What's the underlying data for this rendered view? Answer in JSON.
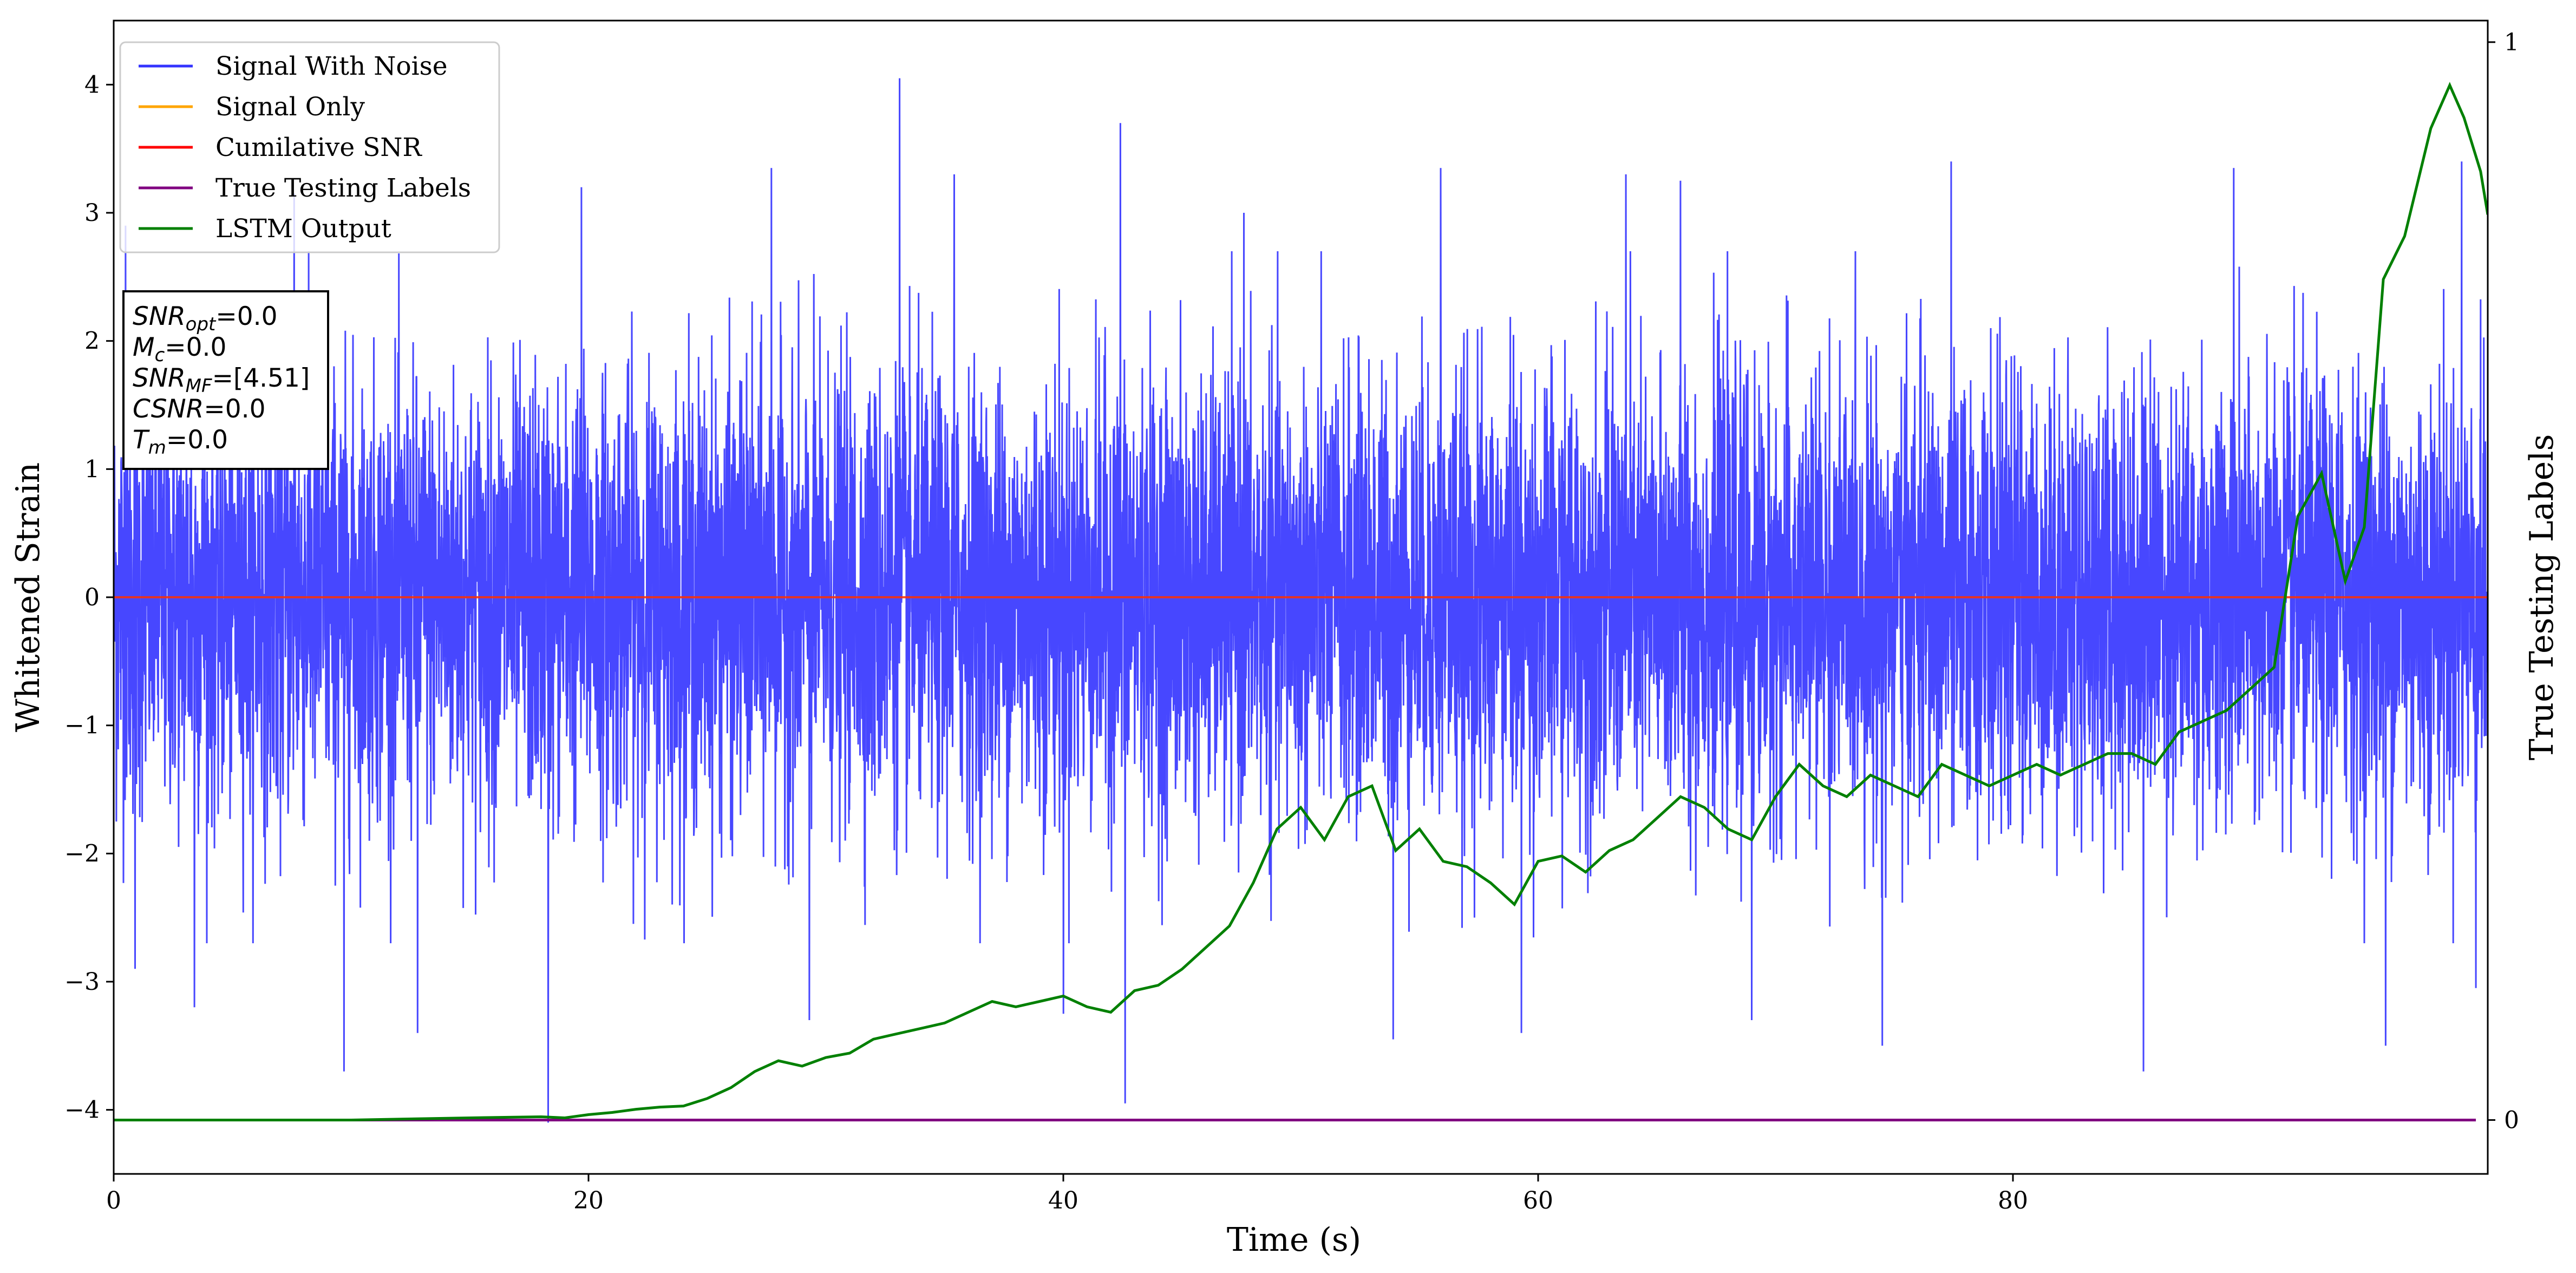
{
  "chart_data": {
    "type": "line",
    "xlabel": "Time (s)",
    "ylabel": "Whitened Strain",
    "y2label": "True Testing Labels",
    "xlim": [
      0,
      100
    ],
    "ylim": [
      -4.5,
      4.5
    ],
    "y2lim": [
      -0.05,
      1.02
    ],
    "xticks": [
      0,
      20,
      40,
      60,
      80
    ],
    "yticks": [
      -4,
      -3,
      -2,
      -1,
      0,
      1,
      2,
      3,
      4
    ],
    "y2ticks": [
      0,
      1
    ],
    "legend_position": "upper-left",
    "series": [
      {
        "name": "Signal With Noise",
        "color": "#3333ff",
        "kind": "noise",
        "x_range": [
          0,
          100
        ],
        "typical_envelope": 2.3,
        "peaks": [
          {
            "x": 0.5,
            "y": 2.9
          },
          {
            "x": 0.9,
            "y": -2.9
          },
          {
            "x": 3.4,
            "y": -3.2
          },
          {
            "x": 7.6,
            "y": 3.15
          },
          {
            "x": 9.7,
            "y": -3.7
          },
          {
            "x": 12.8,
            "y": -3.4
          },
          {
            "x": 18.3,
            "y": -4.1
          },
          {
            "x": 19.7,
            "y": 3.2
          },
          {
            "x": 27.7,
            "y": 3.35
          },
          {
            "x": 29.3,
            "y": -3.3
          },
          {
            "x": 33.1,
            "y": 4.05
          },
          {
            "x": 35.4,
            "y": 3.3
          },
          {
            "x": 40.0,
            "y": -3.25
          },
          {
            "x": 42.4,
            "y": 3.7
          },
          {
            "x": 42.6,
            "y": -3.95
          },
          {
            "x": 47.6,
            "y": 3.0
          },
          {
            "x": 53.9,
            "y": -3.45
          },
          {
            "x": 55.9,
            "y": 3.35
          },
          {
            "x": 59.3,
            "y": -3.4
          },
          {
            "x": 63.7,
            "y": 3.3
          },
          {
            "x": 66.0,
            "y": 3.25
          },
          {
            "x": 69.0,
            "y": -3.3
          },
          {
            "x": 74.5,
            "y": -3.5
          },
          {
            "x": 77.4,
            "y": 3.4
          },
          {
            "x": 85.5,
            "y": -3.7
          },
          {
            "x": 89.3,
            "y": 3.35
          },
          {
            "x": 95.7,
            "y": -3.5
          },
          {
            "x": 98.9,
            "y": 3.4
          },
          {
            "x": 99.5,
            "y": -3.05
          }
        ]
      },
      {
        "name": "Signal Only",
        "color": "#ffa500",
        "y_const": 0.0
      },
      {
        "name": "Cumilative SNR",
        "color": "#ff0000",
        "y_const": 0.0
      },
      {
        "name": "True Testing Labels",
        "color": "#800080",
        "axis": "right",
        "y_const": 0.0
      },
      {
        "name": "LSTM Output",
        "color": "#008000",
        "axis": "right",
        "points": [
          [
            0,
            0.0
          ],
          [
            10,
            0.0
          ],
          [
            15,
            0.002
          ],
          [
            18,
            0.003
          ],
          [
            19,
            0.002
          ],
          [
            20,
            0.005
          ],
          [
            21,
            0.007
          ],
          [
            22,
            0.01
          ],
          [
            23,
            0.012
          ],
          [
            24,
            0.013
          ],
          [
            25,
            0.02
          ],
          [
            26,
            0.03
          ],
          [
            27,
            0.045
          ],
          [
            28,
            0.055
          ],
          [
            29,
            0.05
          ],
          [
            30,
            0.058
          ],
          [
            31,
            0.062
          ],
          [
            32,
            0.075
          ],
          [
            33,
            0.08
          ],
          [
            34,
            0.085
          ],
          [
            35,
            0.09
          ],
          [
            36,
            0.1
          ],
          [
            37,
            0.11
          ],
          [
            38,
            0.105
          ],
          [
            39,
            0.11
          ],
          [
            40,
            0.115
          ],
          [
            41,
            0.105
          ],
          [
            42,
            0.1
          ],
          [
            43,
            0.12
          ],
          [
            44,
            0.125
          ],
          [
            45,
            0.14
          ],
          [
            46,
            0.16
          ],
          [
            47,
            0.18
          ],
          [
            48,
            0.22
          ],
          [
            49,
            0.27
          ],
          [
            50,
            0.29
          ],
          [
            51,
            0.26
          ],
          [
            52,
            0.3
          ],
          [
            53,
            0.31
          ],
          [
            54,
            0.25
          ],
          [
            55,
            0.27
          ],
          [
            56,
            0.24
          ],
          [
            57,
            0.235
          ],
          [
            58,
            0.22
          ],
          [
            59,
            0.2
          ],
          [
            60,
            0.24
          ],
          [
            61,
            0.245
          ],
          [
            62,
            0.23
          ],
          [
            63,
            0.25
          ],
          [
            64,
            0.26
          ],
          [
            65,
            0.28
          ],
          [
            66,
            0.3
          ],
          [
            67,
            0.29
          ],
          [
            68,
            0.27
          ],
          [
            69,
            0.26
          ],
          [
            70,
            0.3
          ],
          [
            71,
            0.33
          ],
          [
            72,
            0.31
          ],
          [
            73,
            0.3
          ],
          [
            74,
            0.32
          ],
          [
            75,
            0.31
          ],
          [
            76,
            0.3
          ],
          [
            77,
            0.33
          ],
          [
            78,
            0.32
          ],
          [
            79,
            0.31
          ],
          [
            80,
            0.32
          ],
          [
            81,
            0.33
          ],
          [
            82,
            0.32
          ],
          [
            83,
            0.33
          ],
          [
            84,
            0.34
          ],
          [
            85,
            0.34
          ],
          [
            86,
            0.33
          ],
          [
            87,
            0.36
          ],
          [
            88,
            0.37
          ],
          [
            89,
            0.38
          ],
          [
            90,
            0.4
          ],
          [
            91,
            0.42
          ],
          [
            92,
            0.56
          ],
          [
            93,
            0.6
          ],
          [
            94,
            0.5
          ],
          [
            94.8,
            0.55
          ],
          [
            95.6,
            0.78
          ],
          [
            96.5,
            0.82
          ],
          [
            97.6,
            0.92
          ],
          [
            98.4,
            0.96
          ],
          [
            99.0,
            0.93
          ],
          [
            99.7,
            0.88
          ],
          [
            100,
            0.84
          ]
        ]
      }
    ],
    "annotation_lines": [
      "SNR_opt=0.0",
      "M_c=0.0",
      "SNR_MF=[4.51]",
      "CSNR=0.0",
      "T_m=0.0"
    ]
  }
}
